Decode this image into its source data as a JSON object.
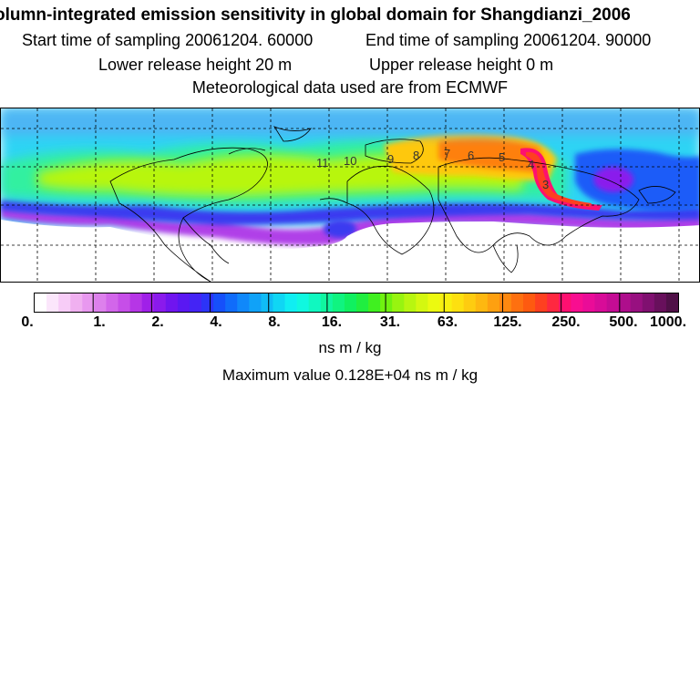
{
  "header": {
    "title": "olumn-integrated emission sensitivity in global domain for Shangdianzi_2006",
    "start_sampling": "Start time of sampling 20061204. 60000",
    "end_sampling": "End time of sampling 20061204. 90000",
    "lower_release": "Lower release height   20 m",
    "upper_release": "Upper release height    0 m",
    "met_data": "Meteorological data used are from ECMWF"
  },
  "map": {
    "contour_labels": [
      "11",
      "10",
      "9",
      "8",
      "7",
      "6",
      "5",
      "4",
      "3"
    ]
  },
  "colorbar": {
    "tick_labels": [
      "0.",
      "1.",
      "2.",
      "4.",
      "8.",
      "16.",
      "31.",
      "63.",
      "125.",
      "250.",
      "500.",
      "1000."
    ],
    "unit": "ns m / kg",
    "colors": [
      "#ffffff",
      "#fbe6fb",
      "#f7ccf7",
      "#f0b0f0",
      "#e898ef",
      "#dd80ec",
      "#d266ea",
      "#c64ee8",
      "#b636e6",
      "#a020e8",
      "#8a1aec",
      "#7015ef",
      "#5a18f2",
      "#4424f5",
      "#2c34f8",
      "#1650fa",
      "#106cfa",
      "#1088fa",
      "#10a2f8",
      "#10bcf6",
      "#10d6f4",
      "#10eef2",
      "#10f8e0",
      "#10f8c0",
      "#10f6a0",
      "#10f480",
      "#10f060",
      "#20ee40",
      "#40f020",
      "#70f210",
      "#98f410",
      "#b8f610",
      "#d4f810",
      "#ecfa10",
      "#f8f010",
      "#fde010",
      "#fecc10",
      "#feb810",
      "#fea010",
      "#fe8810",
      "#fe7010",
      "#fe5a10",
      "#fe4020",
      "#fe2840",
      "#fe1070",
      "#f80e90",
      "#ea0c98",
      "#d80c98",
      "#c40c94",
      "#ae0e8c",
      "#981080",
      "#801070",
      "#68105c",
      "#501048"
    ]
  },
  "footer": {
    "max_value": "Maximum value  0.128E+04 ns m / kg"
  }
}
